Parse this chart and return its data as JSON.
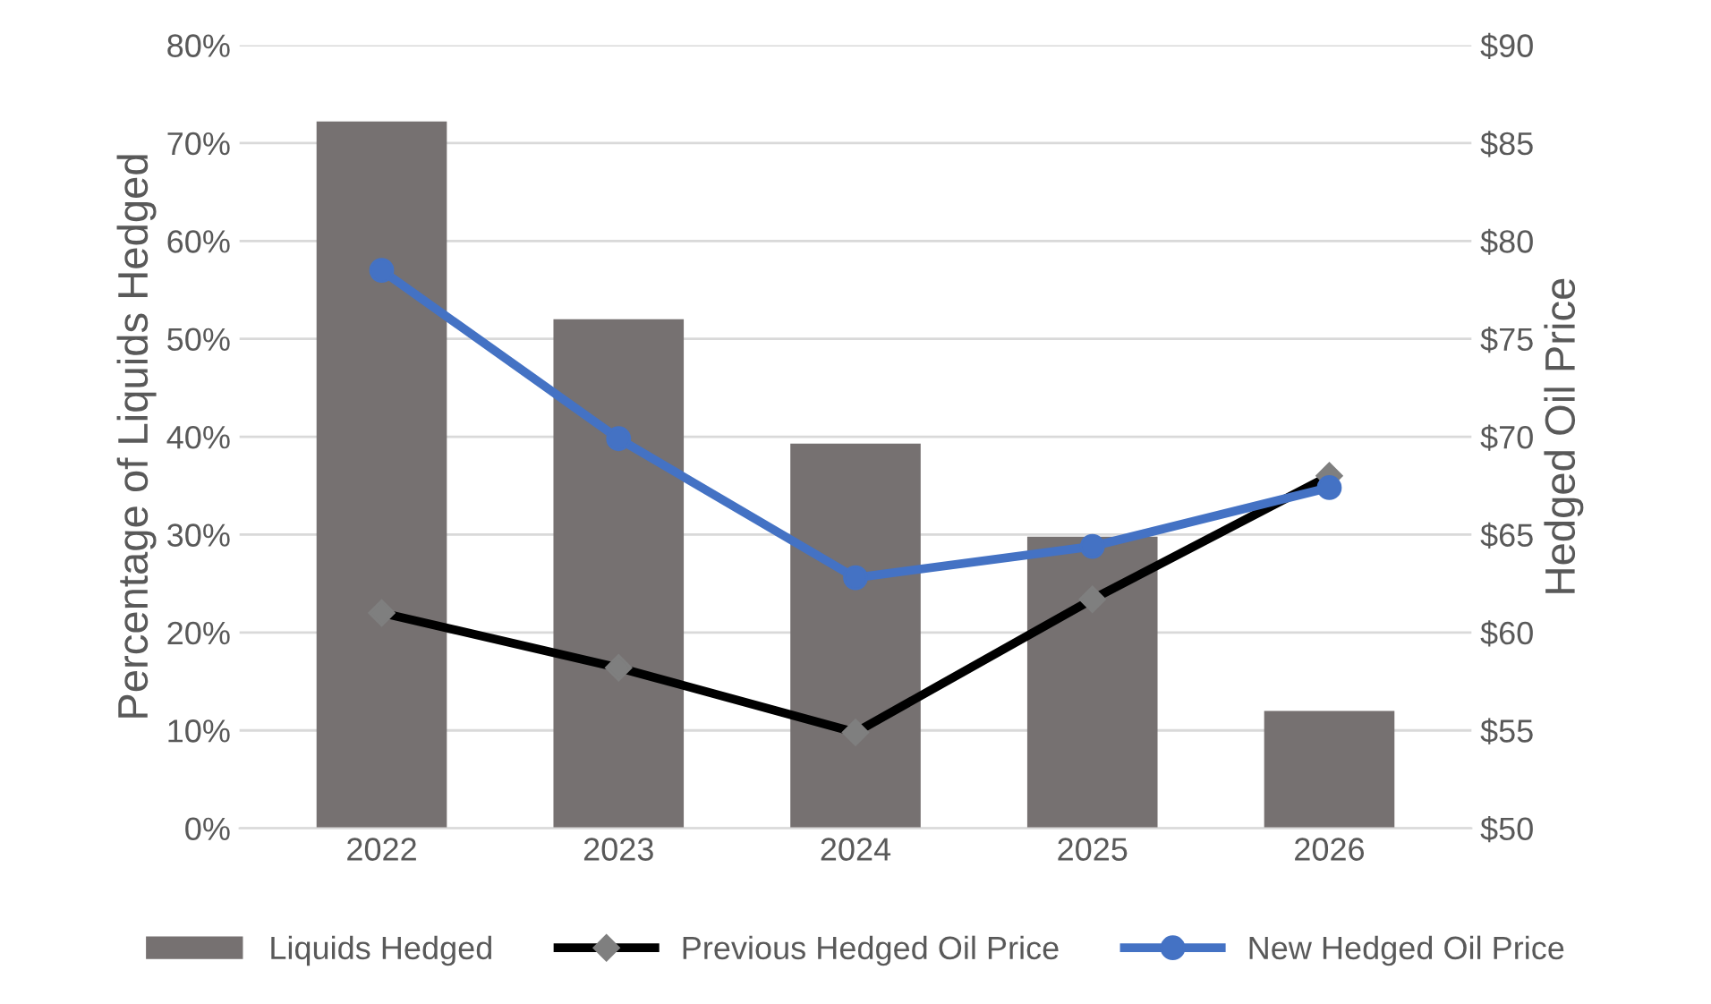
{
  "chart_data": {
    "type": "bar",
    "categories": [
      "2022",
      "2023",
      "2024",
      "2025",
      "2026"
    ],
    "ylabel": "Percentage of Liquids Hedged",
    "y2label": "Hedged Oil Price",
    "ylim": [
      0,
      0.8
    ],
    "yticks": [
      {
        "value": 0,
        "label": "0%"
      },
      {
        "value": 0.1,
        "label": "10%"
      },
      {
        "value": 0.2,
        "label": "20%"
      },
      {
        "value": 0.3,
        "label": "30%"
      },
      {
        "value": 0.4,
        "label": "40%"
      },
      {
        "value": 0.5,
        "label": "50%"
      },
      {
        "value": 0.6,
        "label": "60%"
      },
      {
        "value": 0.7,
        "label": "70%"
      },
      {
        "value": 0.8,
        "label": "80%"
      }
    ],
    "y2lim": [
      50,
      90
    ],
    "y2ticks": [
      {
        "value": 50,
        "label": "$50"
      },
      {
        "value": 55,
        "label": "$55"
      },
      {
        "value": 60,
        "label": "$60"
      },
      {
        "value": 65,
        "label": "$65"
      },
      {
        "value": 70,
        "label": "$70"
      },
      {
        "value": 75,
        "label": "$75"
      },
      {
        "value": 80,
        "label": "$80"
      },
      {
        "value": 85,
        "label": "$85"
      },
      {
        "value": 90,
        "label": "$90"
      }
    ],
    "grid": "y",
    "legend": "bottom",
    "series": [
      {
        "name": "Liquids Hedged",
        "color": "#767171",
        "values": [
          0.722,
          0.52,
          0.393,
          0.298,
          0.12
        ]
      },
      {
        "name": "Previous Hedged Oil Price",
        "type": "line",
        "axis": "y2",
        "color": "#000000",
        "marker": "diamond",
        "values": [
          61.0,
          58.2,
          54.9,
          61.7,
          68.0
        ]
      },
      {
        "name": "New Hedged Oil Price",
        "type": "line",
        "axis": "y2",
        "color": "#4472c4",
        "marker": "circle",
        "values": [
          78.5,
          69.9,
          62.8,
          64.4,
          67.4
        ]
      }
    ]
  }
}
